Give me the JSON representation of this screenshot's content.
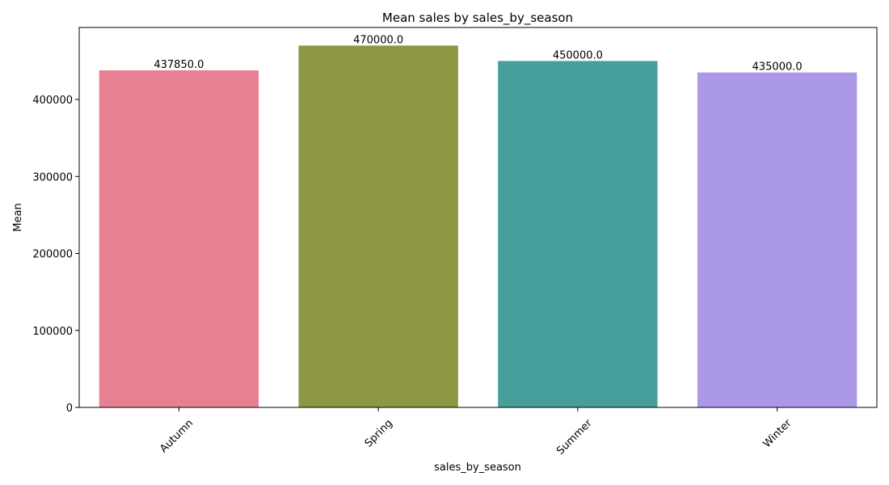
{
  "chart_data": {
    "type": "bar",
    "title": "Mean sales by sales_by_season",
    "xlabel": "sales_by_season",
    "ylabel": "Mean",
    "categories": [
      "Autumn",
      "Spring",
      "Summer",
      "Winter"
    ],
    "values": [
      437850.0,
      470000.0,
      450000.0,
      435000.0
    ],
    "data_labels": [
      "437850.0",
      "470000.0",
      "450000.0",
      "435000.0"
    ],
    "colors": [
      "#e88093",
      "#8d9743",
      "#469f9a",
      "#ab99e8"
    ],
    "ylim": [
      0,
      493500
    ],
    "yticks": [
      0,
      100000,
      200000,
      300000,
      400000
    ],
    "ytick_labels": [
      "0",
      "100000",
      "200000",
      "300000",
      "400000"
    ],
    "grid": false,
    "legend": "none"
  }
}
